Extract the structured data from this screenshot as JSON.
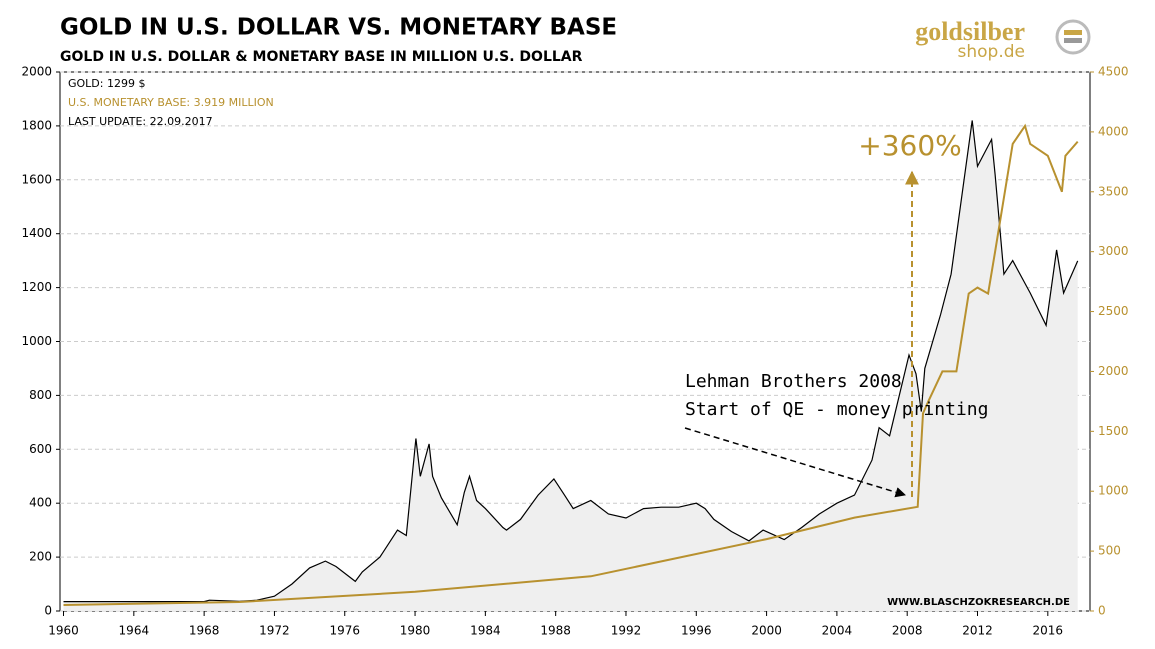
{
  "chart_data": {
    "type": "line",
    "title": "GOLD  IN  U.S. DOLLAR  VS.  MONETARY  BASE",
    "subtitle": "GOLD IN U.S. DOLLAR & MONETARY BASE IN MILLION  U.S. DOLLAR",
    "logo": [
      "goldsilber",
      "shop.de"
    ],
    "last_update": "LAST UPDATE: 22.09.2017",
    "annotations": [
      "Lehman Brothers 2008",
      "Start of QE - money printing",
      "+360%"
    ],
    "source": "WWW.BLASCHZOKRESEARCH.DE",
    "xlim": [
      1959.8,
      2018.4
    ],
    "xticks": [
      1960,
      1964,
      1968,
      1972,
      1976,
      1980,
      1984,
      1988,
      1992,
      1996,
      2000,
      2004,
      2008,
      2012,
      2016
    ],
    "ylim": [
      0,
      2000
    ],
    "yticks": [
      0,
      200,
      400,
      600,
      800,
      1000,
      1200,
      1400,
      1600,
      1800,
      2000
    ],
    "y2lim": [
      0,
      4500
    ],
    "y2ticks": [
      0,
      500,
      1000,
      1500,
      2000,
      2500,
      3000,
      3500,
      4000,
      4500
    ],
    "grid": true,
    "legend": "top-left",
    "series": [
      {
        "name": "GOLD: 1299 $",
        "color": "#000000",
        "area_color": "#efefef",
        "x": [
          1960,
          1968,
          1968.3,
          1970,
          1971,
          1972,
          1973,
          1974,
          1974.9,
          1975.5,
          1976.6,
          1977,
          1978,
          1979,
          1979.5,
          1980.05,
          1980.3,
          1980.8,
          1981,
          1981.5,
          1982.4,
          1982.8,
          1983.1,
          1983.5,
          1984,
          1985,
          1985.2,
          1986,
          1987,
          1987.9,
          1988.5,
          1989,
          1990,
          1991,
          1992,
          1993,
          1994,
          1995,
          1996,
          1996.5,
          1997,
          1998,
          1999,
          1999.8,
          2001,
          2002,
          2003,
          2004,
          2005,
          2006,
          2006.4,
          2007,
          2008.1,
          2008.5,
          2008.8,
          2009,
          2009.9,
          2010.5,
          2011.7,
          2012,
          2012.8,
          2013,
          2013.5,
          2014,
          2015,
          2015.9,
          2016.5,
          2016.9,
          2017.7
        ],
        "values": [
          35,
          35,
          40,
          36,
          40,
          55,
          100,
          160,
          185,
          165,
          110,
          145,
          200,
          300,
          280,
          640,
          500,
          620,
          500,
          420,
          320,
          440,
          500,
          410,
          380,
          310,
          300,
          340,
          430,
          490,
          430,
          380,
          410,
          360,
          345,
          380,
          385,
          385,
          400,
          380,
          340,
          295,
          260,
          300,
          265,
          310,
          360,
          400,
          430,
          560,
          680,
          650,
          950,
          880,
          740,
          900,
          1100,
          1250,
          1820,
          1650,
          1750,
          1620,
          1250,
          1300,
          1180,
          1060,
          1340,
          1180,
          1299
        ]
      },
      {
        "name": "U.S. MONETARY BASE:  3.919 MILLION",
        "color": "#b8912f",
        "axis": "y2",
        "x": [
          1960,
          1970,
          1980,
          1990,
          2000,
          2005,
          2008.6,
          2008.9,
          2009.2,
          2010,
          2010.8,
          2011.5,
          2012,
          2012.6,
          2013,
          2014,
          2014.7,
          2015,
          2016,
          2016.8,
          2017,
          2017.7
        ],
        "values": [
          50,
          75,
          160,
          290,
          600,
          780,
          870,
          1650,
          1750,
          2000,
          2000,
          2650,
          2700,
          2650,
          3000,
          3900,
          4050,
          3900,
          3800,
          3500,
          3800,
          3919
        ]
      }
    ]
  }
}
